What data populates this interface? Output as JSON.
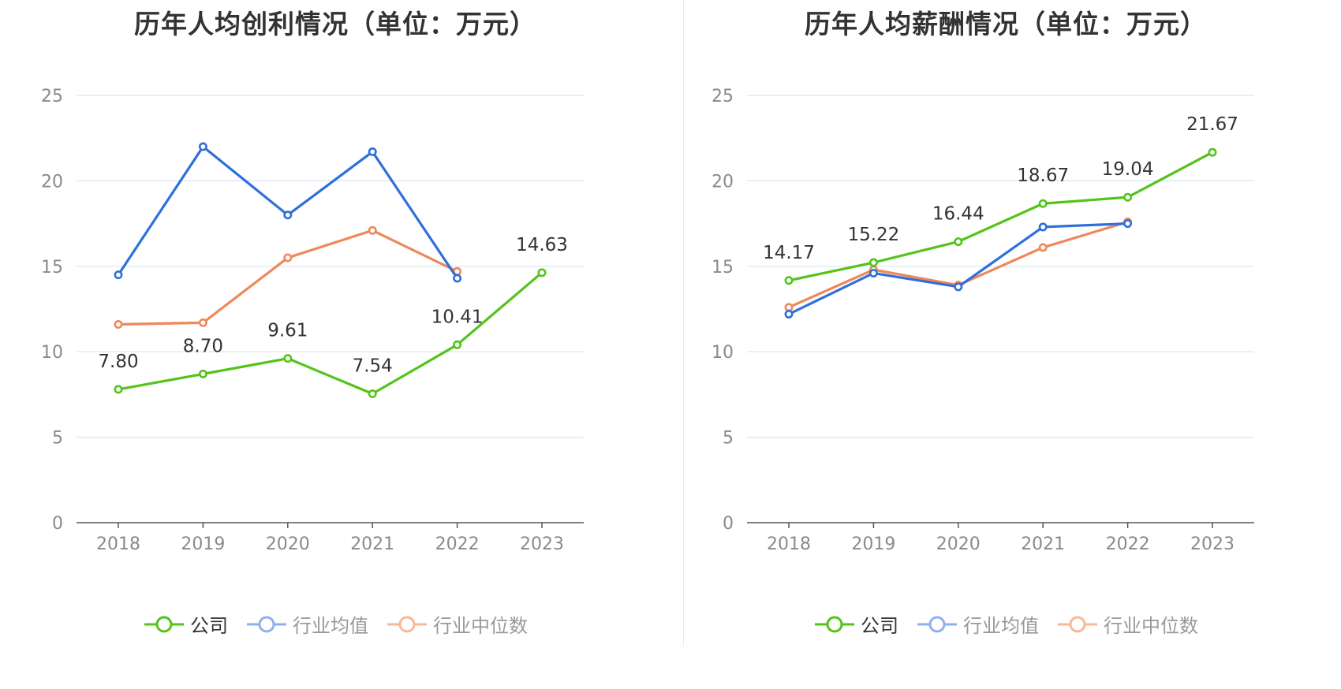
{
  "colors": {
    "company": "#52c41a",
    "avg": "#2f6fdb",
    "median": "#f0875a",
    "avg_legend": "#8fb0ef",
    "median_legend": "#f7b899",
    "grid": "#dde3ee",
    "axis": "#555555"
  },
  "legend": [
    "公司",
    "行业均值",
    "行业中位数"
  ],
  "chart_data": [
    {
      "type": "line",
      "title": "历年人均创利情况（单位：万元）",
      "categories": [
        "2018",
        "2019",
        "2020",
        "2021",
        "2022",
        "2023"
      ],
      "ylim": [
        0,
        25
      ],
      "yticks": [
        "0",
        "5",
        "10",
        "15",
        "20",
        "25"
      ],
      "grid": true,
      "legend_position": "bottom",
      "series": [
        {
          "name": "公司",
          "key": "company",
          "values": [
            7.8,
            8.7,
            9.61,
            7.54,
            10.41,
            14.63
          ],
          "labels": [
            "7.80",
            "8.70",
            "9.61",
            "7.54",
            "10.41",
            "14.63"
          ]
        },
        {
          "name": "行业均值",
          "key": "avg",
          "values": [
            14.5,
            22.0,
            18.0,
            21.7,
            14.3,
            null
          ]
        },
        {
          "name": "行业中位数",
          "key": "median",
          "values": [
            11.6,
            11.7,
            15.5,
            17.1,
            14.7,
            null
          ]
        }
      ]
    },
    {
      "type": "line",
      "title": "历年人均薪酬情况（单位：万元）",
      "categories": [
        "2018",
        "2019",
        "2020",
        "2021",
        "2022",
        "2023"
      ],
      "ylim": [
        0,
        25
      ],
      "yticks": [
        "0",
        "5",
        "10",
        "15",
        "20",
        "25"
      ],
      "grid": true,
      "legend_position": "bottom",
      "series": [
        {
          "name": "公司",
          "key": "company",
          "values": [
            14.17,
            15.22,
            16.44,
            18.67,
            19.04,
            21.67
          ],
          "labels": [
            "14.17",
            "15.22",
            "16.44",
            "18.67",
            "19.04",
            "21.67"
          ]
        },
        {
          "name": "行业均值",
          "key": "avg",
          "values": [
            12.2,
            14.6,
            13.8,
            17.3,
            17.5,
            null
          ]
        },
        {
          "name": "行业中位数",
          "key": "median",
          "values": [
            12.6,
            14.8,
            13.9,
            16.1,
            17.6,
            null
          ]
        }
      ]
    }
  ]
}
